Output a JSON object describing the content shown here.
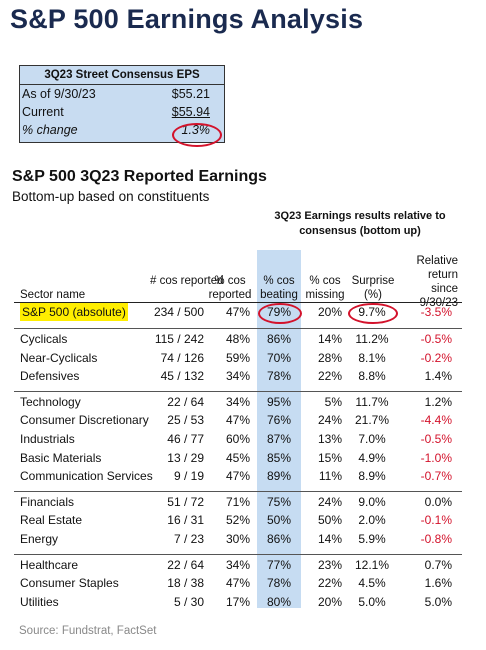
{
  "title": "S&P 500 Earnings Analysis",
  "consensus": {
    "header": "3Q23 Street Consensus EPS",
    "rows": [
      {
        "label": "As of 9/30/23",
        "value": "$55.21"
      },
      {
        "label": "Current",
        "value": "$55.94"
      },
      {
        "label": "% change",
        "value": "1.3%"
      }
    ]
  },
  "section_title": "S&P 500 3Q23 Reported Earnings",
  "subtitle": "Bottom-up based on constituents",
  "relative_header": "3Q23 Earnings results relative to consensus (bottom up)",
  "columns": {
    "sector": "Sector name",
    "reported": "# cos reported",
    "pct_reported": "% cos reported",
    "beating": "% cos beating",
    "missing": "% cos missing",
    "surprise": "Surprise (%)",
    "relative": "Relative return since 9/30/23"
  },
  "total_row": {
    "name": "S&P 500 (absolute)",
    "reported": "234 / 500",
    "pct": "47%",
    "beat": "79%",
    "miss": "20%",
    "surprise": "9.7%",
    "rel": "-3.5%",
    "rel_negative": true
  },
  "groups": [
    [
      {
        "name": "Cyclicals",
        "reported": "115 / 242",
        "pct": "48%",
        "beat": "86%",
        "miss": "14%",
        "surprise": "11.2%",
        "rel": "-0.5%",
        "rel_negative": true
      },
      {
        "name": "Near-Cyclicals",
        "reported": "74 / 126",
        "pct": "59%",
        "beat": "70%",
        "miss": "28%",
        "surprise": "8.1%",
        "rel": "-0.2%",
        "rel_negative": true
      },
      {
        "name": "Defensives",
        "reported": "45 / 132",
        "pct": "34%",
        "beat": "78%",
        "miss": "22%",
        "surprise": "8.8%",
        "rel": "1.4%",
        "rel_negative": false
      }
    ],
    [
      {
        "name": "Technology",
        "reported": "22 / 64",
        "pct": "34%",
        "beat": "95%",
        "miss": "5%",
        "surprise": "11.7%",
        "rel": "1.2%",
        "rel_negative": false
      },
      {
        "name": "Consumer Discretionary",
        "reported": "25 / 53",
        "pct": "47%",
        "beat": "76%",
        "miss": "24%",
        "surprise": "21.7%",
        "rel": "-4.4%",
        "rel_negative": true
      },
      {
        "name": "Industrials",
        "reported": "46 / 77",
        "pct": "60%",
        "beat": "87%",
        "miss": "13%",
        "surprise": "7.0%",
        "rel": "-0.5%",
        "rel_negative": true
      },
      {
        "name": "Basic Materials",
        "reported": "13 / 29",
        "pct": "45%",
        "beat": "85%",
        "miss": "15%",
        "surprise": "4.9%",
        "rel": "-1.0%",
        "rel_negative": true
      },
      {
        "name": "Communication Services",
        "reported": "9 / 19",
        "pct": "47%",
        "beat": "89%",
        "miss": "11%",
        "surprise": "8.9%",
        "rel": "-0.7%",
        "rel_negative": true
      }
    ],
    [
      {
        "name": "Financials",
        "reported": "51 / 72",
        "pct": "71%",
        "beat": "75%",
        "miss": "24%",
        "surprise": "9.0%",
        "rel": "0.0%",
        "rel_negative": false
      },
      {
        "name": "Real Estate",
        "reported": "16 / 31",
        "pct": "52%",
        "beat": "50%",
        "miss": "50%",
        "surprise": "2.0%",
        "rel": "-0.1%",
        "rel_negative": true
      },
      {
        "name": "Energy",
        "reported": "7 / 23",
        "pct": "30%",
        "beat": "86%",
        "miss": "14%",
        "surprise": "5.9%",
        "rel": "-0.8%",
        "rel_negative": true
      }
    ],
    [
      {
        "name": "Healthcare",
        "reported": "22 / 64",
        "pct": "34%",
        "beat": "77%",
        "miss": "23%",
        "surprise": "12.1%",
        "rel": "0.7%",
        "rel_negative": false
      },
      {
        "name": "Consumer Staples",
        "reported": "18 / 38",
        "pct": "47%",
        "beat": "78%",
        "miss": "22%",
        "surprise": "4.5%",
        "rel": "1.6%",
        "rel_negative": false
      },
      {
        "name": "Utilities",
        "reported": "5 / 30",
        "pct": "17%",
        "beat": "80%",
        "miss": "20%",
        "surprise": "5.0%",
        "rel": "5.0%",
        "rel_negative": false
      }
    ]
  ],
  "source": "Source: Fundstrat, FactSet",
  "colors": {
    "title": "#1a2a4f",
    "highlight_col": "#c6dcf2",
    "circle": "#d3122b",
    "negative": "#d3122b",
    "yellow": "#ffee00"
  }
}
